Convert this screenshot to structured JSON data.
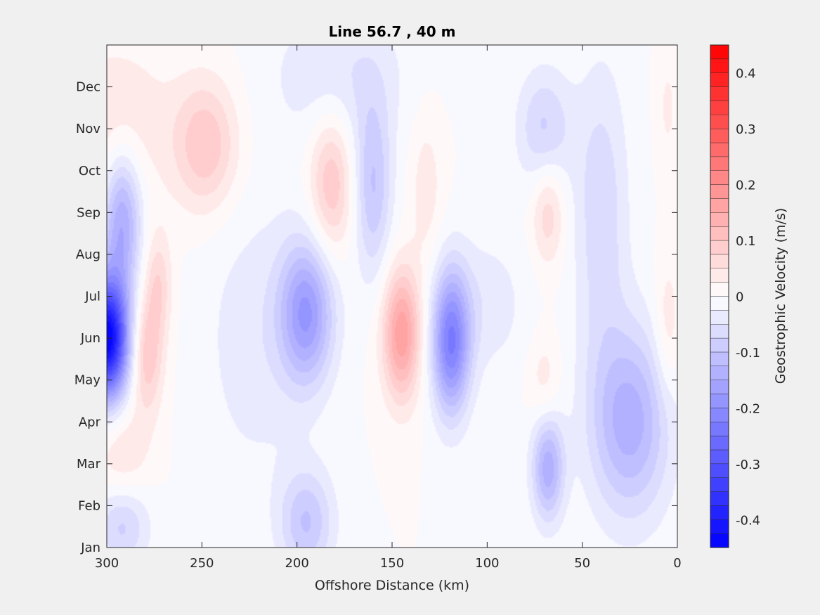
{
  "chart_data": {
    "type": "heatmap",
    "title": "Line 56.7 , 40 m",
    "xlabel": "Offshore Distance (km)",
    "x_ticks": [
      "300",
      "250",
      "200",
      "150",
      "100",
      "50",
      "0"
    ],
    "x_tick_values": [
      300,
      250,
      200,
      150,
      100,
      50,
      0
    ],
    "xlim": [
      300,
      0
    ],
    "x_reversed": true,
    "y_ticks": [
      "Jan",
      "Feb",
      "Mar",
      "Apr",
      "May",
      "Jun",
      "Jul",
      "Aug",
      "Sep",
      "Oct",
      "Nov",
      "Dec"
    ],
    "y_tick_values": [
      0,
      1,
      2,
      3,
      4,
      5,
      6,
      7,
      8,
      9,
      10,
      11
    ],
    "ylim": [
      0,
      12
    ],
    "colorbar": {
      "label": "Geostrophic Velocity (m/s)",
      "ticks": [
        "0.4",
        "0.3",
        "0.2",
        "0.1",
        "0",
        "-0.1",
        "-0.2",
        "-0.3",
        "-0.4"
      ],
      "tick_values": [
        0.4,
        0.3,
        0.2,
        0.1,
        0,
        -0.1,
        -0.2,
        -0.3,
        -0.4
      ],
      "range": [
        -0.45,
        0.45
      ],
      "levels": 36,
      "colormap": "blue-white-red",
      "color_min": "#0000ff",
      "color_zero": "#ffffff",
      "color_max": "#ff0000"
    },
    "features": [
      {
        "x": 300,
        "y": 5.0,
        "value": -0.45,
        "sx": 8,
        "sy": 1.0
      },
      {
        "x": 292,
        "y": 7.8,
        "value": -0.15,
        "sx": 7,
        "sy": 1.2
      },
      {
        "x": 279,
        "y": 4.6,
        "value": 0.1,
        "sx": 6,
        "sy": 1.0
      },
      {
        "x": 273,
        "y": 6.3,
        "value": 0.07,
        "sx": 5,
        "sy": 0.9
      },
      {
        "x": 248,
        "y": 9.6,
        "value": 0.1,
        "sx": 12,
        "sy": 1.1
      },
      {
        "x": 295,
        "y": 10.2,
        "value": 0.05,
        "sx": 20,
        "sy": 1.3
      },
      {
        "x": 292,
        "y": 2.3,
        "value": 0.05,
        "sx": 10,
        "sy": 0.8
      },
      {
        "x": 292,
        "y": 0.5,
        "value": -0.08,
        "sx": 10,
        "sy": 0.7
      },
      {
        "x": 195,
        "y": 5.6,
        "value": -0.17,
        "sx": 10,
        "sy": 1.2
      },
      {
        "x": 195,
        "y": 0.6,
        "value": -0.1,
        "sx": 10,
        "sy": 0.9
      },
      {
        "x": 182,
        "y": 8.7,
        "value": 0.1,
        "sx": 8,
        "sy": 1.2
      },
      {
        "x": 160,
        "y": 8.6,
        "value": -0.1,
        "sx": 7,
        "sy": 1.5
      },
      {
        "x": 145,
        "y": 5.1,
        "value": 0.17,
        "sx": 7,
        "sy": 1.1
      },
      {
        "x": 119,
        "y": 4.9,
        "value": -0.22,
        "sx": 7,
        "sy": 1.2
      },
      {
        "x": 222,
        "y": 5.0,
        "value": -0.04,
        "sx": 20,
        "sy": 2.5
      },
      {
        "x": 178,
        "y": 11.3,
        "value": -0.05,
        "sx": 25,
        "sy": 1.2
      },
      {
        "x": 132,
        "y": 8.6,
        "value": 0.04,
        "sx": 6,
        "sy": 1.3
      },
      {
        "x": 68,
        "y": 8.0,
        "value": 0.07,
        "sx": 6,
        "sy": 0.9
      },
      {
        "x": 68,
        "y": 1.9,
        "value": -0.14,
        "sx": 6,
        "sy": 0.9
      },
      {
        "x": 70,
        "y": 10.0,
        "value": -0.08,
        "sx": 10,
        "sy": 1.0
      },
      {
        "x": 25,
        "y": 3.0,
        "value": -0.14,
        "sx": 15,
        "sy": 1.6
      },
      {
        "x": 40,
        "y": 8.0,
        "value": -0.07,
        "sx": 10,
        "sy": 2.5
      },
      {
        "x": 70,
        "y": 4.0,
        "value": 0.04,
        "sx": 6,
        "sy": 0.8
      },
      {
        "x": 5,
        "y": 5.2,
        "value": 0.05,
        "sx": 5,
        "sy": 1.2
      },
      {
        "x": 5,
        "y": 10.5,
        "value": 0.03,
        "sx": 4,
        "sy": 1.0
      },
      {
        "x": 100,
        "y": 5.8,
        "value": -0.04,
        "sx": 15,
        "sy": 1.2
      }
    ]
  }
}
